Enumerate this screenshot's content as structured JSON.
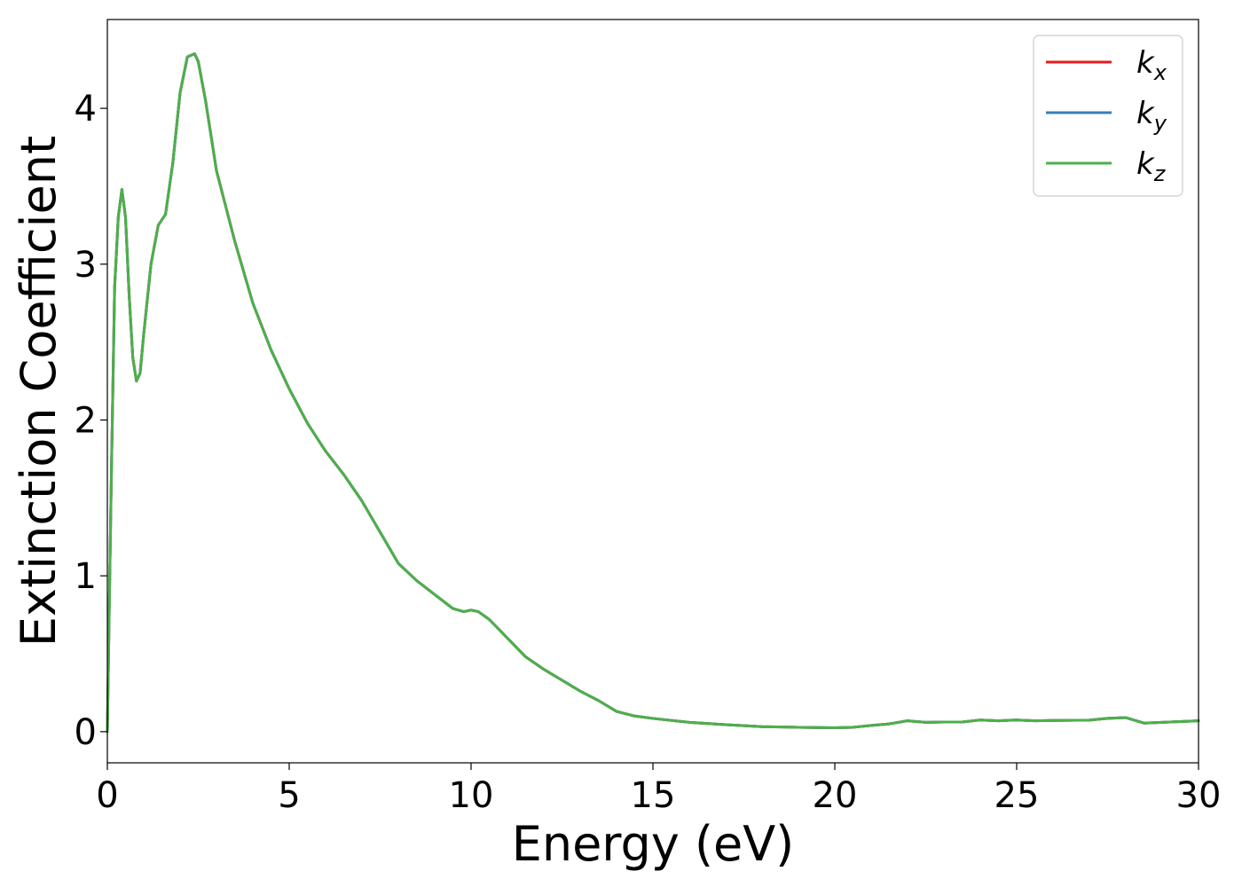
{
  "chart_data": {
    "type": "line",
    "title": "",
    "xlabel": "Energy (eV)",
    "ylabel": "Extinction Coefficient",
    "xlim": [
      0,
      30
    ],
    "ylim": [
      -0.2,
      4.57
    ],
    "xticks": [
      0,
      5,
      10,
      15,
      20,
      25,
      30
    ],
    "yticks": [
      0,
      1,
      2,
      3,
      4
    ],
    "grid": false,
    "legend_position": "top-right",
    "x": [
      0,
      0.1,
      0.2,
      0.3,
      0.4,
      0.5,
      0.6,
      0.7,
      0.8,
      0.9,
      1.0,
      1.2,
      1.4,
      1.6,
      1.8,
      2.0,
      2.2,
      2.4,
      2.5,
      2.7,
      3.0,
      3.5,
      4.0,
      4.5,
      5.0,
      5.5,
      6.0,
      6.5,
      7.0,
      7.5,
      8.0,
      8.5,
      9.0,
      9.5,
      9.8,
      10.0,
      10.2,
      10.5,
      11.0,
      11.5,
      12.0,
      12.5,
      13.0,
      13.5,
      14.0,
      14.5,
      15.0,
      16.0,
      17.0,
      18.0,
      19.0,
      20.0,
      20.5,
      21.0,
      21.5,
      22.0,
      22.5,
      23.0,
      23.5,
      24.0,
      24.5,
      25.0,
      25.5,
      26.0,
      27.0,
      27.5,
      28.0,
      28.5,
      29.0,
      29.5,
      30.0
    ],
    "series": [
      {
        "name": "k_x",
        "color": "#e41a1c",
        "values": [
          0.0,
          1.5,
          2.85,
          3.3,
          3.48,
          3.3,
          2.8,
          2.4,
          2.25,
          2.3,
          2.55,
          3.0,
          3.25,
          3.32,
          3.65,
          4.1,
          4.33,
          4.35,
          4.3,
          4.05,
          3.6,
          3.15,
          2.75,
          2.45,
          2.2,
          1.98,
          1.8,
          1.65,
          1.48,
          1.28,
          1.08,
          0.97,
          0.88,
          0.79,
          0.77,
          0.78,
          0.77,
          0.72,
          0.6,
          0.48,
          0.4,
          0.33,
          0.26,
          0.2,
          0.13,
          0.1,
          0.085,
          0.06,
          0.045,
          0.032,
          0.028,
          0.025,
          0.028,
          0.04,
          0.05,
          0.07,
          0.06,
          0.062,
          0.062,
          0.075,
          0.07,
          0.075,
          0.07,
          0.072,
          0.074,
          0.085,
          0.09,
          0.055,
          0.06,
          0.065,
          0.07
        ]
      },
      {
        "name": "k_y",
        "color": "#377eb8",
        "values": [
          0.0,
          1.5,
          2.85,
          3.3,
          3.48,
          3.3,
          2.8,
          2.4,
          2.25,
          2.3,
          2.55,
          3.0,
          3.25,
          3.32,
          3.65,
          4.1,
          4.33,
          4.35,
          4.3,
          4.05,
          3.6,
          3.15,
          2.75,
          2.45,
          2.2,
          1.98,
          1.8,
          1.65,
          1.48,
          1.28,
          1.08,
          0.97,
          0.88,
          0.79,
          0.77,
          0.78,
          0.77,
          0.72,
          0.6,
          0.48,
          0.4,
          0.33,
          0.26,
          0.2,
          0.13,
          0.1,
          0.085,
          0.06,
          0.045,
          0.032,
          0.028,
          0.025,
          0.028,
          0.04,
          0.05,
          0.07,
          0.06,
          0.062,
          0.062,
          0.075,
          0.07,
          0.075,
          0.07,
          0.072,
          0.074,
          0.085,
          0.09,
          0.055,
          0.06,
          0.065,
          0.07
        ]
      },
      {
        "name": "k_z",
        "color": "#4daf4a",
        "values": [
          0.0,
          1.5,
          2.85,
          3.3,
          3.48,
          3.3,
          2.8,
          2.4,
          2.25,
          2.3,
          2.55,
          3.0,
          3.25,
          3.32,
          3.65,
          4.1,
          4.33,
          4.35,
          4.3,
          4.05,
          3.6,
          3.15,
          2.75,
          2.45,
          2.2,
          1.98,
          1.8,
          1.65,
          1.48,
          1.28,
          1.08,
          0.97,
          0.88,
          0.79,
          0.77,
          0.78,
          0.77,
          0.72,
          0.6,
          0.48,
          0.4,
          0.33,
          0.26,
          0.2,
          0.13,
          0.1,
          0.085,
          0.06,
          0.045,
          0.032,
          0.028,
          0.025,
          0.028,
          0.04,
          0.05,
          0.07,
          0.06,
          0.062,
          0.062,
          0.075,
          0.07,
          0.075,
          0.07,
          0.072,
          0.074,
          0.085,
          0.09,
          0.055,
          0.06,
          0.065,
          0.07
        ]
      }
    ],
    "legend": [
      {
        "base": "k",
        "sub": "x"
      },
      {
        "base": "k",
        "sub": "y"
      },
      {
        "base": "k",
        "sub": "z"
      }
    ]
  }
}
